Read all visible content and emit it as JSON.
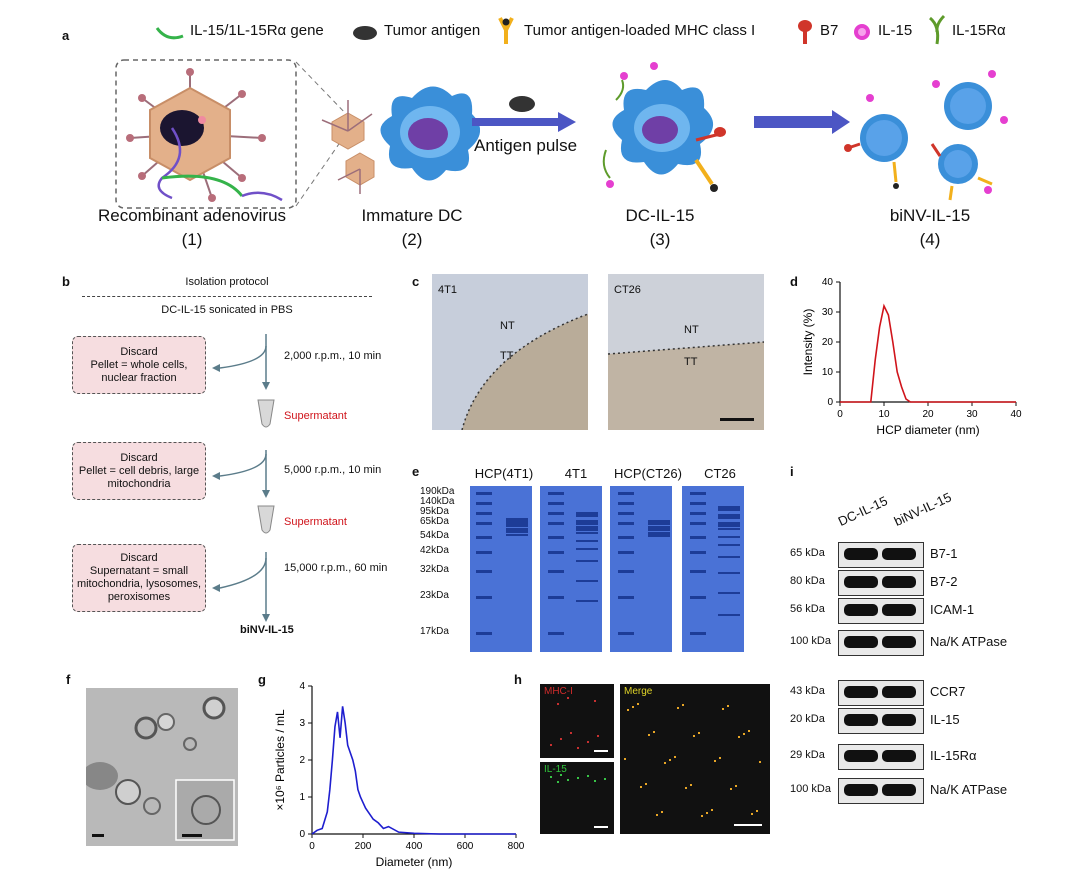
{
  "panel_a": {
    "label": "a",
    "legend": [
      "IL-15/1L-15Rα gene",
      "Tumor antigen",
      "Tumor antigen-loaded MHC class I",
      "B7",
      "IL-15",
      "IL-15Rα"
    ],
    "arrow_label": "Antigen pulse",
    "steps": [
      {
        "name": "Recombinant adenovirus",
        "num": "(1)"
      },
      {
        "name": "Immature DC",
        "num": "(2)"
      },
      {
        "name": "DC-IL-15",
        "num": "(3)"
      },
      {
        "name": "biNV-IL-15",
        "num": "(4)"
      }
    ],
    "colors": {
      "gene": "#35b34a",
      "antigen": "#333333",
      "mhc": "#f2b01c",
      "b7": "#d0352a",
      "il15": "#e53fd0",
      "il15ra": "#5e9b2b",
      "cell": "#3a8fd9"
    }
  },
  "panel_b": {
    "label": "b",
    "title": "Isolation protocol",
    "subtitle": "DC-IL-15 sonicated in PBS",
    "spins": [
      "2,000 r.p.m., 10 min",
      "5,000 r.p.m., 10 min",
      "15,000 r.p.m., 60 min"
    ],
    "supernatant": "Supermatant",
    "discard_title": "Discard",
    "discards": [
      "Pellet = whole cells, nuclear fraction",
      "Pellet = cell debris, large mitochondria",
      "Supernatant = small mitochondria, lysosomes, peroxisomes"
    ],
    "result": "biNV-IL-15"
  },
  "panel_c": {
    "label": "c",
    "images": [
      {
        "title": "4T1",
        "nt": "NT",
        "tt": "TT"
      },
      {
        "title": "CT26",
        "nt": "NT",
        "tt": "TT"
      }
    ]
  },
  "panel_d": {
    "label": "d",
    "chart_data": {
      "type": "line",
      "xlabel": "HCP diameter (nm)",
      "ylabel": "Intensity (%)",
      "xlim": [
        0,
        40
      ],
      "ylim": [
        0,
        40
      ],
      "xticks": [
        "0",
        "10",
        "20",
        "30",
        "40"
      ],
      "yticks": [
        "0",
        "10",
        "20",
        "30",
        "40"
      ],
      "x": [
        0,
        7,
        8,
        9,
        10,
        11,
        12,
        13,
        14,
        15,
        16,
        20,
        30,
        40
      ],
      "y": [
        0,
        0,
        14,
        25,
        32,
        29,
        20,
        10,
        5,
        1,
        0,
        0,
        0,
        0
      ],
      "color": "#d0141b"
    }
  },
  "panel_e": {
    "label": "e",
    "lanes": [
      "HCP(4T1)",
      "4T1",
      "HCP(CT26)",
      "CT26"
    ],
    "markers": [
      "190kDa",
      "140kDa",
      "95kDa",
      "65kDa",
      "54kDa",
      "42kDa",
      "32kDa",
      "23kDa",
      "17kDa"
    ]
  },
  "panel_f": {
    "label": "f"
  },
  "panel_g": {
    "label": "g",
    "chart_data": {
      "type": "line",
      "xlabel": "Diameter (nm)",
      "ylabel": "×10⁶ Particles / mL",
      "xlim": [
        0,
        800
      ],
      "ylim": [
        0,
        4
      ],
      "xticks": [
        "0",
        "200",
        "400",
        "600",
        "800"
      ],
      "yticks": [
        "0",
        "1",
        "2",
        "3",
        "4"
      ],
      "x": [
        0,
        20,
        40,
        60,
        70,
        80,
        90,
        100,
        110,
        120,
        130,
        140,
        150,
        160,
        170,
        180,
        190,
        200,
        210,
        220,
        240,
        260,
        280,
        300,
        340,
        400,
        500,
        600,
        700,
        800
      ],
      "y": [
        0,
        0.1,
        0.15,
        0.6,
        1.2,
        2.0,
        2.9,
        3.3,
        2.6,
        3.45,
        3.0,
        2.4,
        2.2,
        2.0,
        1.7,
        1.2,
        1.0,
        0.85,
        0.7,
        0.6,
        0.4,
        0.3,
        0.15,
        0.2,
        0.05,
        0.02,
        0,
        0,
        0,
        0
      ],
      "color": "#1e1ecf"
    }
  },
  "panel_h": {
    "label": "h",
    "channels": [
      "MHC-I",
      "IL-15",
      "Merge"
    ]
  },
  "panel_i": {
    "label": "i",
    "columns": [
      "DC-IL-15",
      "biNV-IL-15"
    ],
    "group1": [
      {
        "kda": "65 kDa",
        "name": "B7-1"
      },
      {
        "kda": "80 kDa",
        "name": "B7-2"
      },
      {
        "kda": "56 kDa",
        "name": "ICAM-1"
      },
      {
        "kda": "100 kDa",
        "name": "Na/K ATPase"
      }
    ],
    "group2": [
      {
        "kda": "43 kDa",
        "name": "CCR7"
      },
      {
        "kda": "20 kDa",
        "name": "IL-15"
      },
      {
        "kda": "29 kDa",
        "name": "IL-15Rα"
      },
      {
        "kda": "100 kDa",
        "name": "Na/K ATPase"
      }
    ]
  }
}
